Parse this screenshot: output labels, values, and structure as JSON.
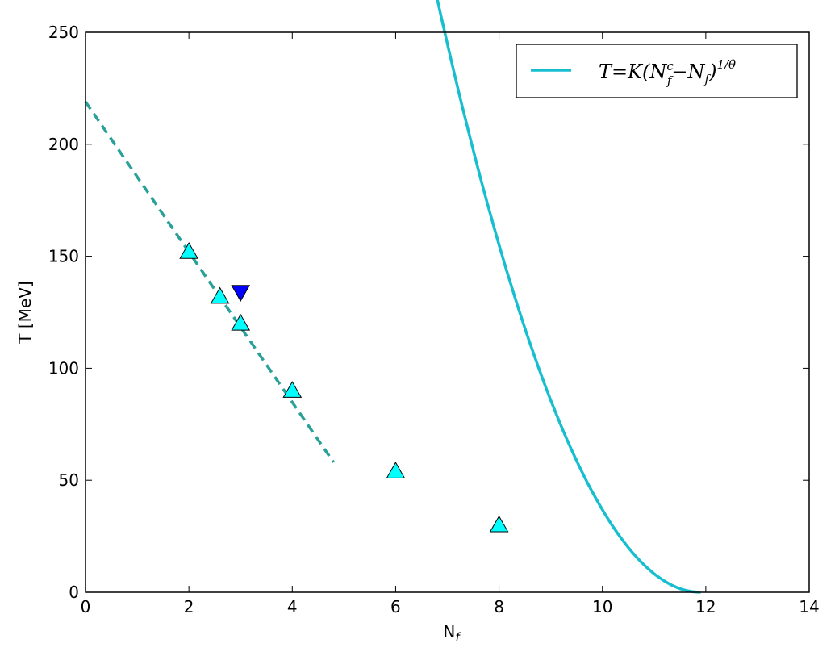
{
  "chart_data": {
    "type": "scatter",
    "xlabel": "N",
    "xlabel_sub": "f",
    "ylabel": "T [MeV]",
    "xlim": [
      0,
      14
    ],
    "ylim": [
      0,
      250
    ],
    "xticks": [
      0,
      2,
      4,
      6,
      8,
      10,
      12,
      14
    ],
    "yticks": [
      0,
      50,
      100,
      150,
      200,
      250
    ],
    "grid": false,
    "legend_position": "top-right",
    "legend": {
      "label_main": "T=K(N",
      "label_sup": "c",
      "label_sub": "f",
      "label_mid": "−N",
      "label_sub2": "f",
      "label_close": ")",
      "label_exp": "1/θ"
    },
    "series": [
      {
        "kind": "markers",
        "marker": "triangle-up",
        "color": "#00ffff",
        "x": [
          2,
          2.6,
          3,
          4,
          6,
          8
        ],
        "y": [
          152,
          132,
          120,
          90,
          54,
          30
        ]
      },
      {
        "kind": "markers",
        "marker": "triangle-down",
        "color": "#0000ff",
        "x": [
          3
        ],
        "y": [
          134
        ]
      },
      {
        "kind": "fit-curve",
        "style": "solid",
        "color": "#17becf",
        "K": 10.2,
        "Nc": 11.9,
        "theta": 0.5,
        "x_range": [
          2.5,
          11.9
        ]
      },
      {
        "kind": "fit-line",
        "style": "dashed",
        "color": "#2aa198",
        "x": [
          0,
          4.8
        ],
        "y": [
          219,
          58
        ]
      }
    ]
  }
}
